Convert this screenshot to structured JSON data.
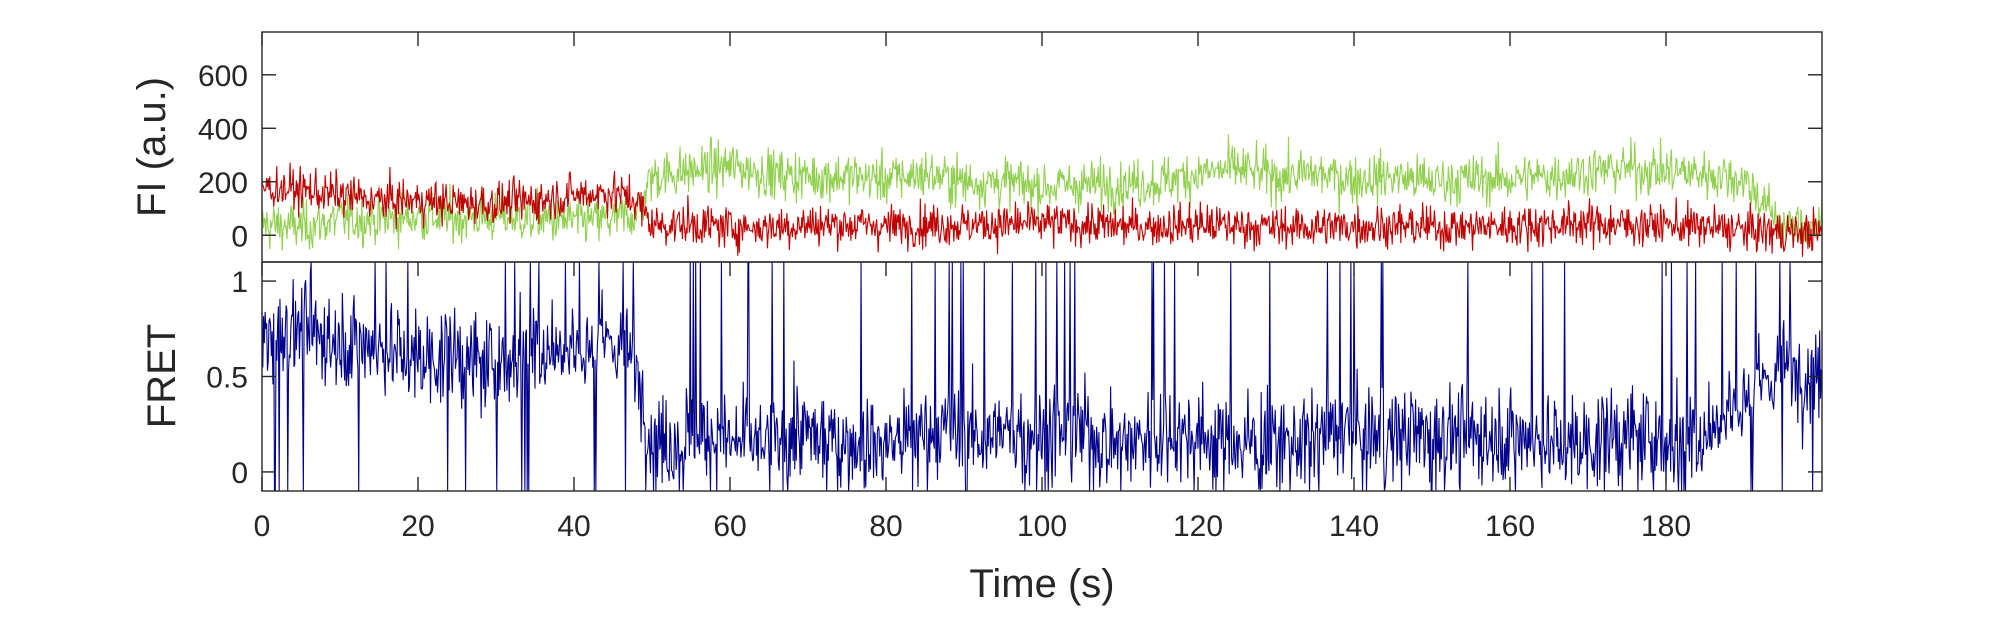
{
  "chart_data": [
    {
      "type": "line",
      "panel": "top",
      "ylabel": "FI (a.u.)",
      "xlim": [
        0,
        200
      ],
      "ylim": [
        -100,
        760
      ],
      "yticks": [
        0,
        200,
        400,
        600
      ],
      "yticklabels": [
        "0",
        "200",
        "400",
        "600"
      ],
      "grid": false,
      "series": [
        {
          "color": "#92d050",
          "x": [
            0,
            5,
            10,
            15,
            20,
            25,
            30,
            35,
            40,
            45,
            48,
            50,
            55,
            60,
            65,
            70,
            75,
            80,
            85,
            90,
            95,
            100,
            105,
            110,
            115,
            120,
            125,
            130,
            135,
            140,
            145,
            150,
            155,
            160,
            165,
            170,
            175,
            180,
            185,
            190,
            195,
            200
          ],
          "values": [
            40,
            30,
            60,
            60,
            70,
            65,
            70,
            60,
            55,
            60,
            80,
            220,
            240,
            260,
            230,
            220,
            220,
            210,
            230,
            200,
            200,
            180,
            190,
            190,
            200,
            230,
            250,
            220,
            230,
            210,
            220,
            200,
            210,
            210,
            220,
            240,
            250,
            240,
            230,
            210,
            30,
            40
          ]
        },
        {
          "color": "#c00000",
          "x": [
            0,
            5,
            10,
            15,
            20,
            25,
            30,
            35,
            40,
            45,
            48,
            50,
            55,
            60,
            65,
            70,
            75,
            80,
            85,
            90,
            95,
            100,
            105,
            110,
            115,
            120,
            125,
            130,
            135,
            140,
            145,
            150,
            155,
            160,
            165,
            170,
            175,
            180,
            185,
            190,
            195,
            200
          ],
          "values": [
            180,
            170,
            150,
            130,
            130,
            120,
            120,
            130,
            150,
            160,
            130,
            40,
            40,
            30,
            30,
            40,
            40,
            35,
            40,
            40,
            40,
            45,
            40,
            35,
            35,
            40,
            35,
            30,
            30,
            35,
            35,
            30,
            30,
            35,
            40,
            45,
            40,
            40,
            30,
            20,
            10,
            10
          ]
        }
      ]
    },
    {
      "type": "line",
      "panel": "bottom",
      "ylabel": "FRET",
      "xlabel": "Time (s)",
      "xlim": [
        0,
        200
      ],
      "ylim": [
        -0.1,
        1.1
      ],
      "xticks": [
        0,
        20,
        40,
        60,
        80,
        100,
        120,
        140,
        160,
        180
      ],
      "xticklabels": [
        "0",
        "20",
        "40",
        "60",
        "80",
        "100",
        "120",
        "140",
        "160",
        "180"
      ],
      "yticks": [
        0,
        0.5,
        1
      ],
      "yticklabels": [
        "0",
        "0.5",
        "1"
      ],
      "grid": false,
      "series": [
        {
          "color": "#00008b",
          "x": [
            0,
            5,
            10,
            15,
            20,
            25,
            30,
            35,
            40,
            45,
            48,
            50,
            55,
            60,
            65,
            70,
            75,
            80,
            85,
            90,
            95,
            100,
            105,
            110,
            115,
            120,
            125,
            130,
            135,
            140,
            145,
            150,
            155,
            160,
            165,
            170,
            175,
            180,
            185,
            190,
            195,
            200
          ],
          "values": [
            0.7,
            0.75,
            0.7,
            0.65,
            0.6,
            0.6,
            0.55,
            0.65,
            0.65,
            0.7,
            0.55,
            0.15,
            0.2,
            0.15,
            0.15,
            0.2,
            0.15,
            0.15,
            0.2,
            0.2,
            0.2,
            0.2,
            0.2,
            0.15,
            0.2,
            0.2,
            0.15,
            0.15,
            0.2,
            0.2,
            0.2,
            0.2,
            0.2,
            0.2,
            0.15,
            0.15,
            0.2,
            0.15,
            0.2,
            0.4,
            0.55,
            0.5
          ]
        }
      ]
    }
  ]
}
